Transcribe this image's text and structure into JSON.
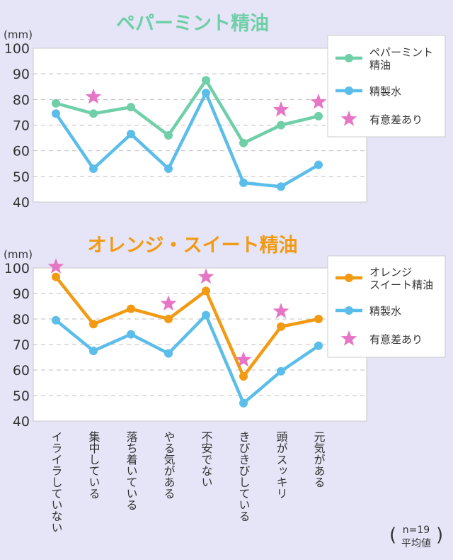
{
  "colors": {
    "background": "#e6e4f7",
    "peppermint": "#6fcfa8",
    "orange": "#f29a12",
    "water": "#5bbde9",
    "star": "#e675c5",
    "grid": "#bfbfbf"
  },
  "x_categories": [
    "イライラしていない",
    "集中している",
    "落ち着いている",
    "やる気がある",
    "不安でない",
    "きびきびしている",
    "頭がスッキリ",
    "元気がある"
  ],
  "note": {
    "open": "(",
    "n": "n=19",
    "label": "平均値",
    "close": ")"
  },
  "chart_data": [
    {
      "type": "line",
      "title": "ペパーミント精油",
      "ylabel": "(mm)",
      "ylim": [
        40,
        100
      ],
      "yticks": [
        40,
        50,
        60,
        70,
        80,
        90,
        100
      ],
      "grid": true,
      "legend_placement": "top-right",
      "series": [
        {
          "name": "ペパーミント\n精油",
          "color": "#6fcfa8",
          "values": [
            78.5,
            74.5,
            77,
            66,
            87.5,
            63,
            70,
            73.5
          ]
        },
        {
          "name": "精製水",
          "color": "#5bbde9",
          "values": [
            74.5,
            53,
            66.5,
            53,
            82.5,
            47.5,
            46,
            54.5
          ]
        }
      ],
      "significance": {
        "name": "有意差あり",
        "color": "#e675c5",
        "indices": [
          1,
          6,
          7
        ],
        "values": [
          81,
          76,
          79
        ]
      }
    },
    {
      "type": "line",
      "title": "オレンジ・スイート精油",
      "ylabel": "(mm)",
      "ylim": [
        40,
        100
      ],
      "yticks": [
        40,
        50,
        60,
        70,
        80,
        90,
        100
      ],
      "grid": true,
      "legend_placement": "top-right",
      "series": [
        {
          "name": "オレンジ\nスイート精油",
          "color": "#f29a12",
          "values": [
            96.5,
            78,
            84,
            80,
            91,
            57.5,
            77,
            80
          ]
        },
        {
          "name": "精製水",
          "color": "#5bbde9",
          "values": [
            79.5,
            67.5,
            74,
            66.5,
            81.5,
            47,
            59.5,
            69.5
          ]
        }
      ],
      "significance": {
        "name": "有意差あり",
        "color": "#e675c5",
        "indices": [
          0,
          3,
          4,
          5,
          6
        ],
        "values": [
          100.5,
          86,
          96.5,
          64,
          83
        ]
      }
    }
  ]
}
